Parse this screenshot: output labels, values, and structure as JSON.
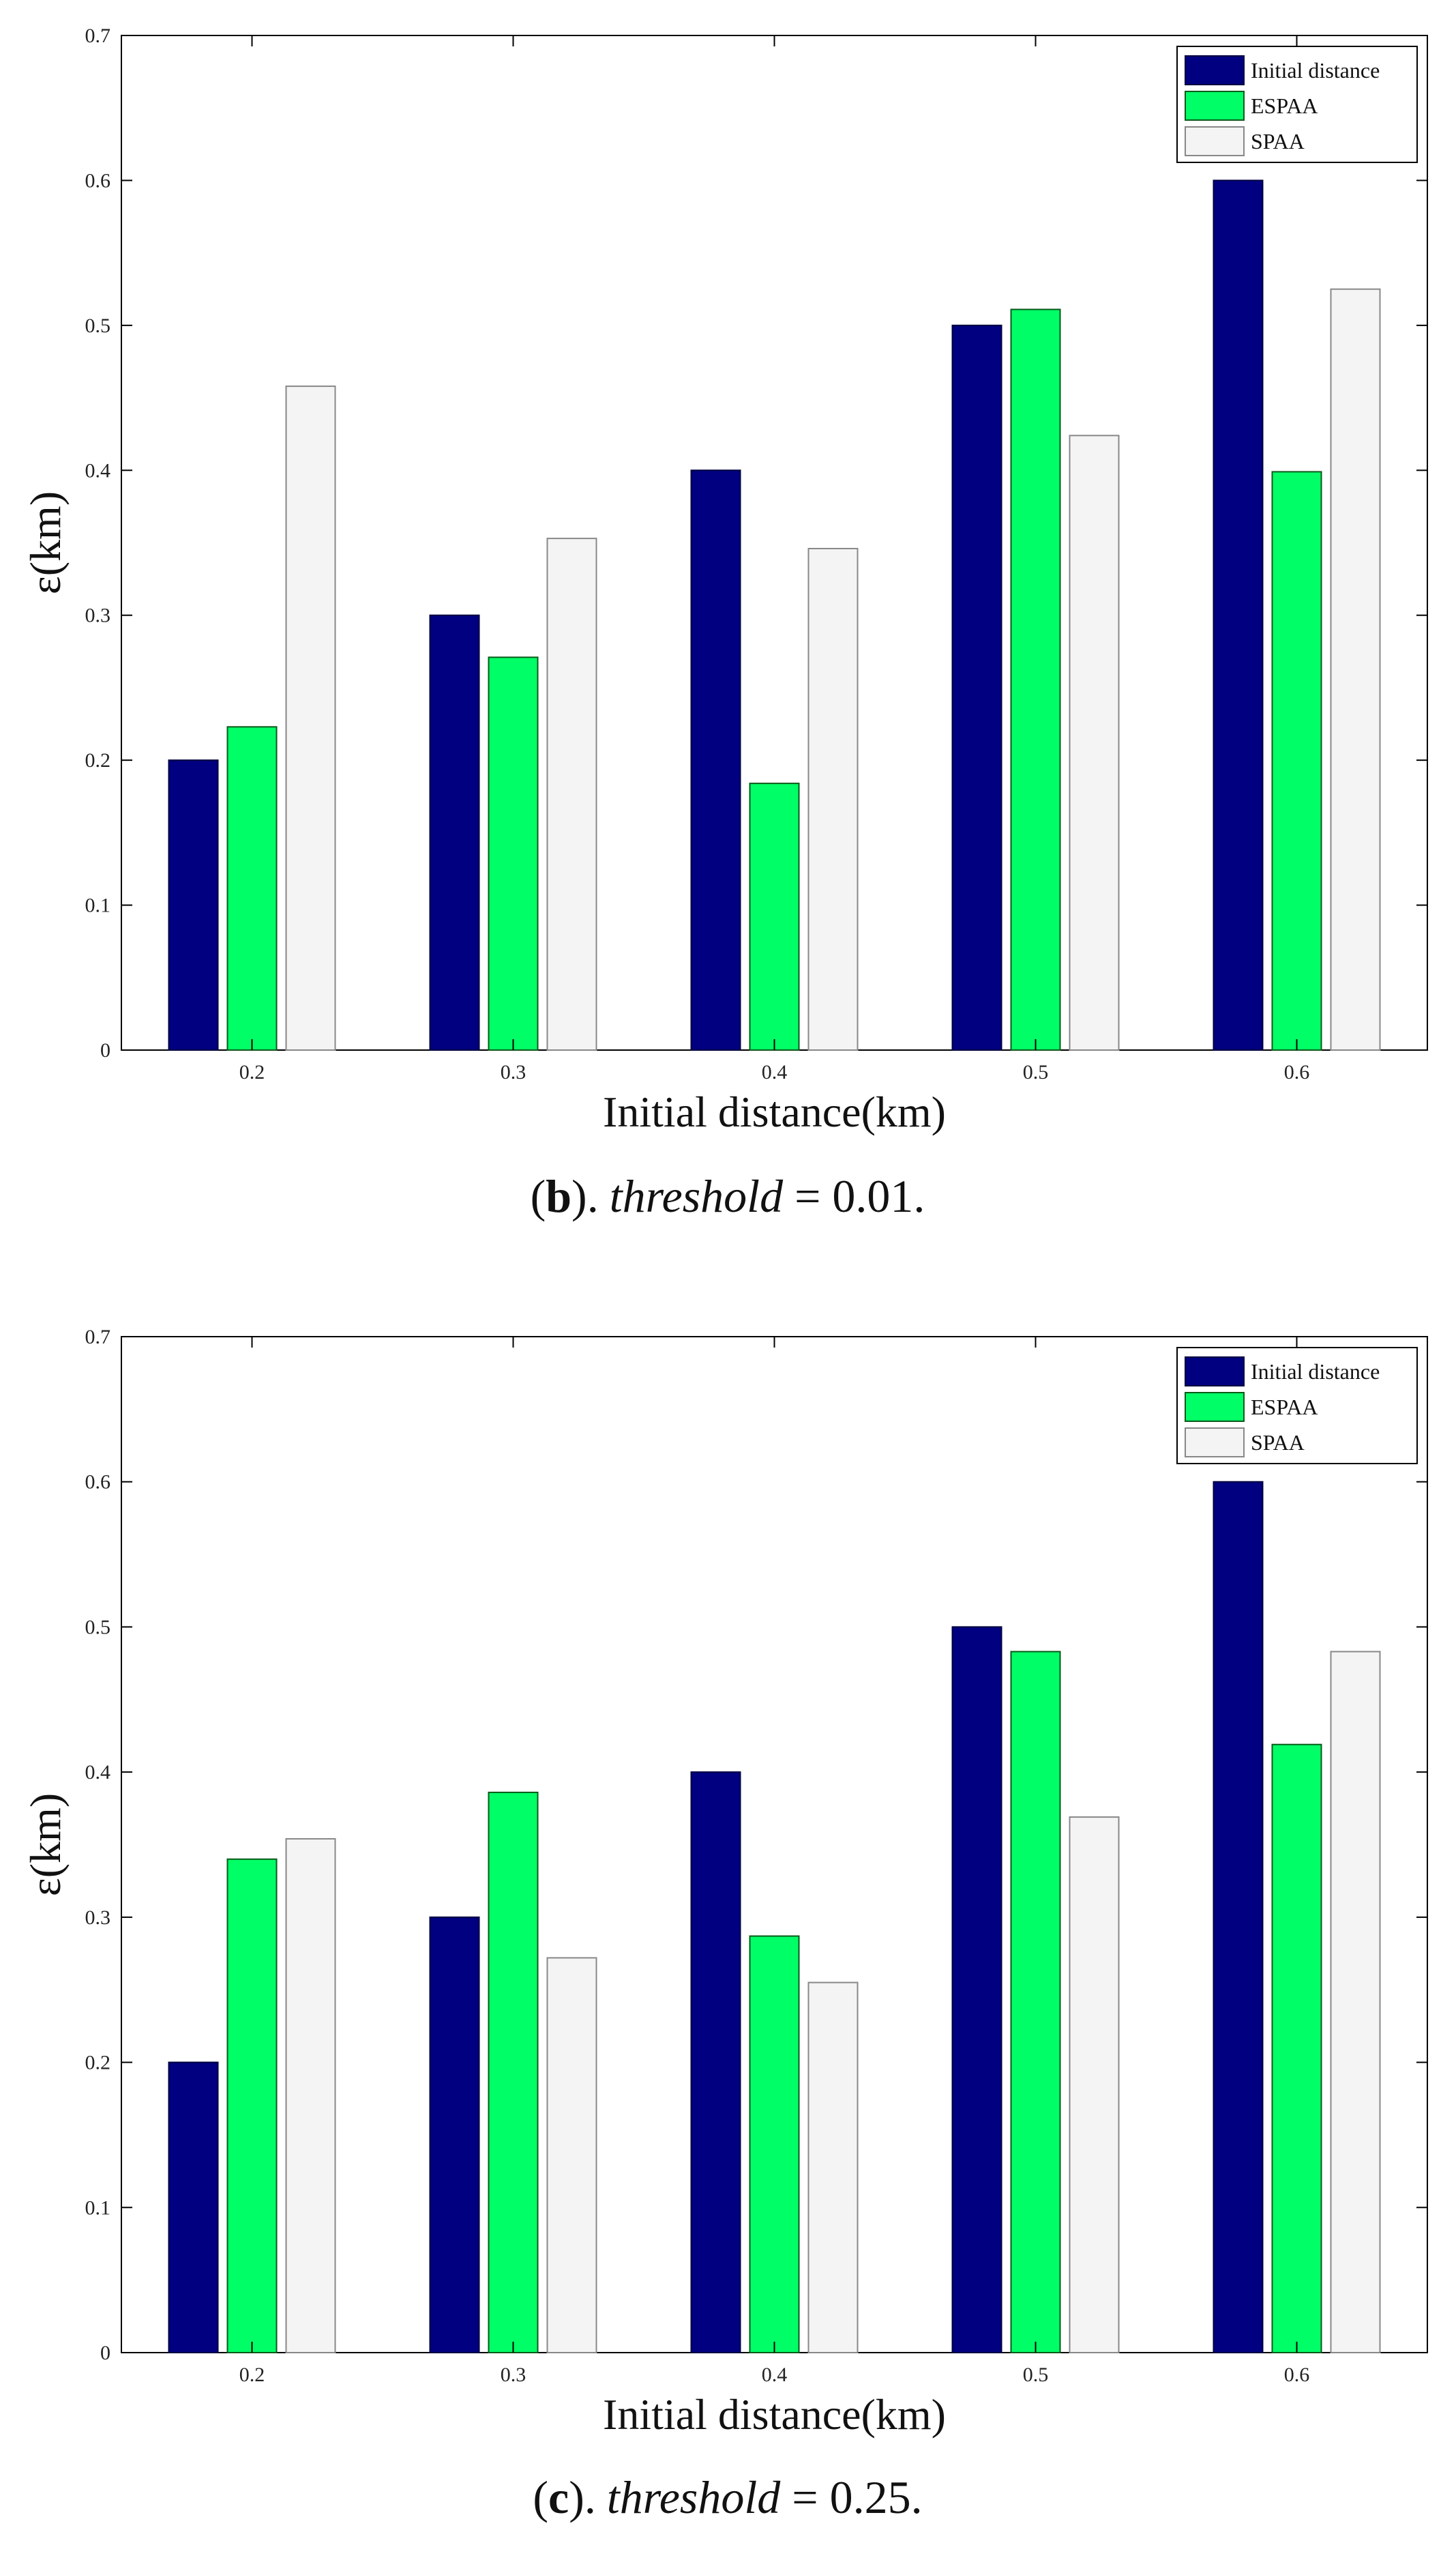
{
  "figure_name": "epsilon-vs-initial-distance",
  "colors": {
    "initial_distance": "#000080",
    "espaa": "#00FF66",
    "spaa": "#F4F4F4",
    "axis": "#000000"
  },
  "chart_data": [
    {
      "type": "bar",
      "panel": "b",
      "categories": [
        "0.2",
        "0.3",
        "0.4",
        "0.5",
        "0.6"
      ],
      "series": [
        {
          "name": "Initial distance",
          "values": [
            0.2,
            0.3,
            0.4,
            0.5,
            0.6
          ]
        },
        {
          "name": "ESPAA",
          "values": [
            0.223,
            0.271,
            0.184,
            0.511,
            0.399
          ]
        },
        {
          "name": "SPAA",
          "values": [
            0.458,
            0.353,
            0.346,
            0.424,
            0.525
          ]
        }
      ],
      "xlabel": "Initial distance(km)",
      "ylabel": "ε(km)",
      "ylim": [
        0,
        0.7
      ],
      "yticks": [
        "0",
        "0.1",
        "0.2",
        "0.3",
        "0.4",
        "0.5",
        "0.6",
        "0.7"
      ],
      "legend_position": "top-right",
      "caption": {
        "label_open": "(",
        "label_letter": "b",
        "label_close": ").",
        "variable": "threshold",
        "value": " = 0.01."
      }
    },
    {
      "type": "bar",
      "panel": "c",
      "categories": [
        "0.2",
        "0.3",
        "0.4",
        "0.5",
        "0.6"
      ],
      "series": [
        {
          "name": "Initial distance",
          "values": [
            0.2,
            0.3,
            0.4,
            0.5,
            0.6
          ]
        },
        {
          "name": "ESPAA",
          "values": [
            0.34,
            0.386,
            0.287,
            0.483,
            0.419
          ]
        },
        {
          "name": "SPAA",
          "values": [
            0.354,
            0.272,
            0.255,
            0.369,
            0.483
          ]
        }
      ],
      "xlabel": "Initial distance(km)",
      "ylabel": "ε(km)",
      "ylim": [
        0,
        0.7
      ],
      "yticks": [
        "0",
        "0.1",
        "0.2",
        "0.3",
        "0.4",
        "0.5",
        "0.6",
        "0.7"
      ],
      "legend_position": "top-right",
      "caption": {
        "label_open": "(",
        "label_letter": "c",
        "label_close": ").",
        "variable": "threshold",
        "value": " = 0.25."
      }
    }
  ]
}
